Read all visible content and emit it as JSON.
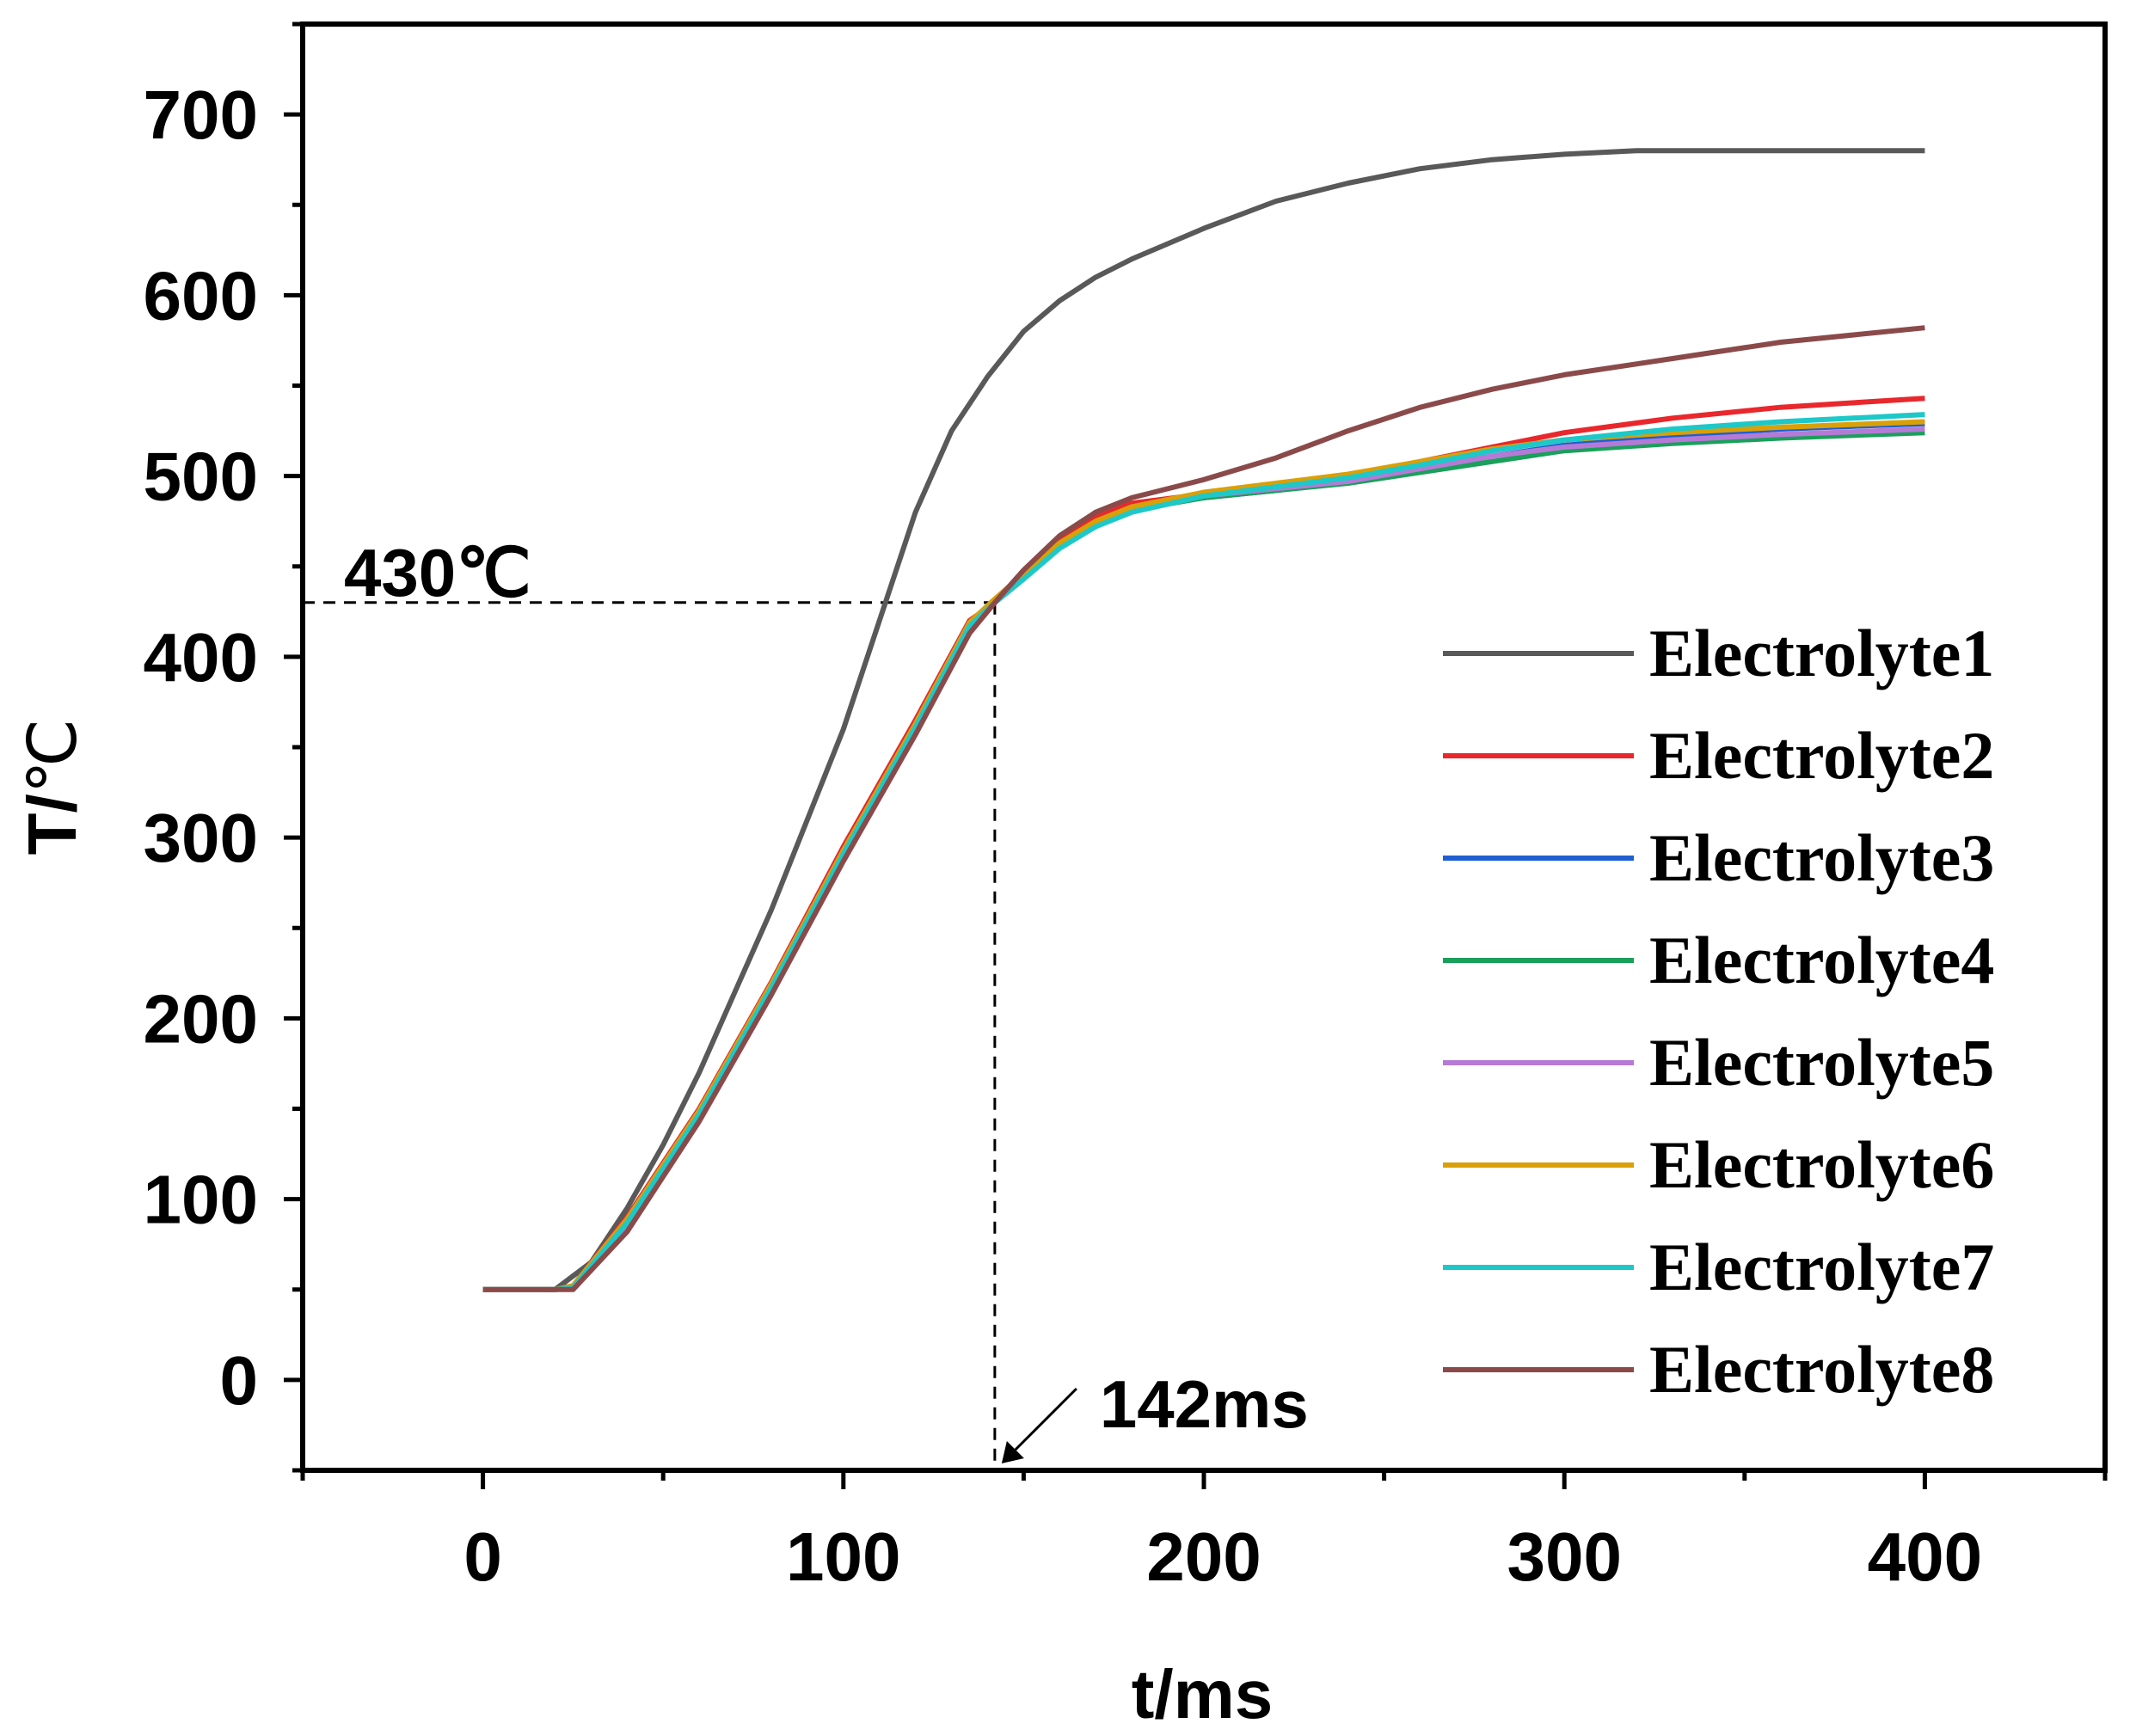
{
  "chart_data": {
    "type": "line",
    "title": "",
    "xlabel": "t/ms",
    "ylabel_main": "T/",
    "ylabel_unit": "℃",
    "xlim": [
      -50,
      450
    ],
    "ylim": [
      -50,
      750
    ],
    "x_ticks": [
      0,
      100,
      200,
      300,
      400
    ],
    "y_ticks": [
      0,
      100,
      200,
      300,
      400,
      500,
      600,
      700
    ],
    "x_tick_labels": [
      "0",
      "100",
      "200",
      "300",
      "400"
    ],
    "y_tick_labels": [
      "0",
      "100",
      "200",
      "300",
      "400",
      "500",
      "600",
      "700"
    ],
    "legend_position": "right",
    "series": [
      {
        "name": "Electrolyte1",
        "color": "#595959",
        "x": [
          0,
          20,
          30,
          40,
          50,
          60,
          70,
          80,
          90,
          100,
          110,
          120,
          130,
          140,
          150,
          160,
          170,
          180,
          200,
          220,
          240,
          260,
          280,
          300,
          320,
          350,
          380,
          400
        ],
        "y": [
          50,
          50,
          65,
          95,
          130,
          170,
          215,
          260,
          310,
          360,
          420,
          480,
          525,
          555,
          580,
          597,
          610,
          620,
          637,
          652,
          662,
          670,
          675,
          678,
          680,
          680,
          680,
          680
        ]
      },
      {
        "name": "Electrolyte2",
        "color": "#e8282c",
        "x": [
          0,
          20,
          25,
          40,
          60,
          80,
          100,
          120,
          135,
          142,
          150,
          160,
          170,
          180,
          200,
          220,
          240,
          260,
          280,
          300,
          330,
          360,
          400
        ],
        "y": [
          50,
          50,
          52,
          90,
          150,
          220,
          295,
          365,
          420,
          430,
          447,
          465,
          477,
          485,
          490,
          495,
          500,
          508,
          516,
          524,
          532,
          538,
          543
        ]
      },
      {
        "name": "Electrolyte3",
        "color": "#1f5fd1",
        "x": [
          0,
          20,
          25,
          40,
          60,
          80,
          100,
          120,
          135,
          142,
          150,
          160,
          170,
          180,
          200,
          220,
          240,
          260,
          280,
          300,
          330,
          360,
          400
        ],
        "y": [
          50,
          50,
          52,
          88,
          148,
          218,
          292,
          362,
          418,
          430,
          445,
          462,
          474,
          482,
          488,
          492,
          497,
          504,
          511,
          517,
          522,
          526,
          529
        ]
      },
      {
        "name": "Electrolyte4",
        "color": "#1aa05a",
        "x": [
          0,
          20,
          25,
          40,
          60,
          80,
          100,
          120,
          135,
          142,
          150,
          160,
          170,
          180,
          200,
          220,
          240,
          260,
          280,
          300,
          330,
          360,
          400
        ],
        "y": [
          50,
          50,
          51,
          87,
          147,
          217,
          291,
          361,
          417,
          430,
          444,
          461,
          473,
          481,
          488,
          492,
          496,
          502,
          508,
          514,
          518,
          521,
          524
        ]
      },
      {
        "name": "Electrolyte5",
        "color": "#b57ad6",
        "x": [
          0,
          20,
          25,
          40,
          60,
          80,
          100,
          120,
          135,
          142,
          150,
          160,
          170,
          180,
          200,
          220,
          240,
          260,
          280,
          300,
          330,
          360,
          400
        ],
        "y": [
          50,
          50,
          51,
          86,
          146,
          216,
          290,
          360,
          416,
          430,
          444,
          461,
          473,
          481,
          489,
          493,
          497,
          504,
          511,
          516,
          520,
          523,
          526
        ]
      },
      {
        "name": "Electrolyte6",
        "color": "#d9a008",
        "x": [
          0,
          20,
          25,
          40,
          60,
          80,
          100,
          120,
          135,
          142,
          150,
          160,
          170,
          180,
          200,
          220,
          240,
          260,
          280,
          300,
          330,
          360,
          400
        ],
        "y": [
          50,
          50,
          52,
          89,
          149,
          219,
          293,
          363,
          419,
          432,
          446,
          463,
          475,
          483,
          491,
          496,
          501,
          508,
          515,
          520,
          524,
          527,
          530
        ]
      },
      {
        "name": "Electrolyte7",
        "color": "#1ec8c8",
        "x": [
          0,
          20,
          25,
          40,
          60,
          80,
          100,
          120,
          135,
          142,
          150,
          160,
          170,
          180,
          200,
          220,
          240,
          260,
          280,
          300,
          330,
          360,
          400
        ],
        "y": [
          50,
          50,
          51,
          87,
          147,
          217,
          291,
          361,
          417,
          430,
          443,
          460,
          472,
          480,
          489,
          494,
          499,
          506,
          514,
          520,
          526,
          530,
          534
        ]
      },
      {
        "name": "Electrolyte8",
        "color": "#8b4a4a",
        "x": [
          0,
          20,
          25,
          40,
          60,
          80,
          100,
          120,
          135,
          142,
          150,
          160,
          170,
          180,
          200,
          220,
          240,
          260,
          280,
          300,
          330,
          360,
          400
        ],
        "y": [
          50,
          50,
          50,
          82,
          143,
          213,
          287,
          357,
          413,
          430,
          448,
          467,
          480,
          488,
          498,
          510,
          525,
          538,
          548,
          556,
          565,
          574,
          582
        ]
      }
    ],
    "annotations": [
      {
        "label": "430℃",
        "x": 142,
        "y": 430,
        "kind": "horizontal-dashed"
      },
      {
        "label": "142ms",
        "x": 142,
        "y": 430,
        "kind": "vertical-dashed-with-arrow"
      }
    ]
  }
}
